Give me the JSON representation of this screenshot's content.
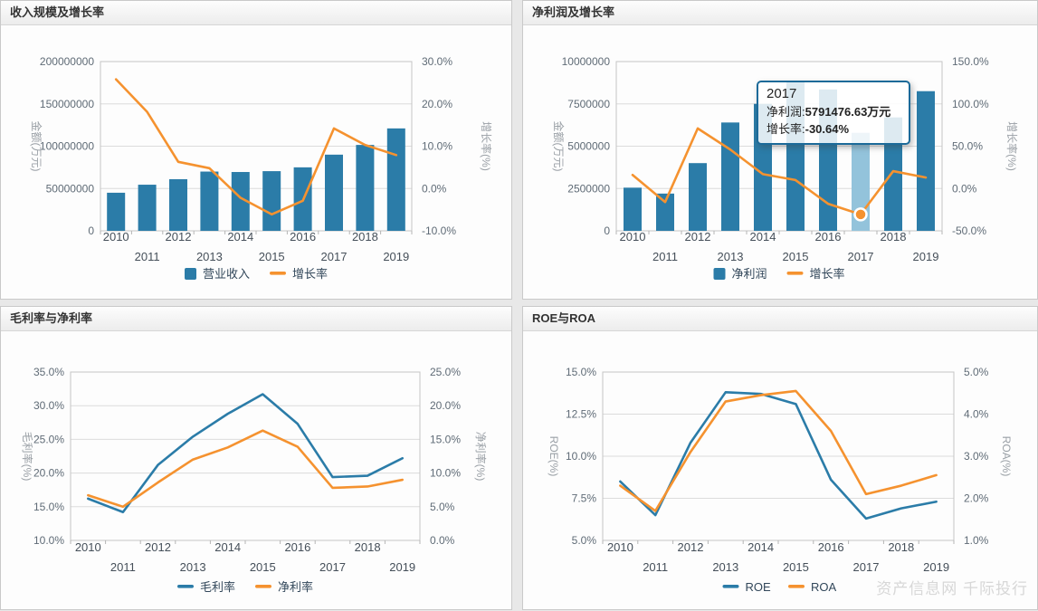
{
  "page": {
    "watermark": "资产信息网 千际投行"
  },
  "panels": [
    {
      "title": "收入规模及增长率"
    },
    {
      "title": "净利润及增长率"
    },
    {
      "title": "毛利率与净利率"
    },
    {
      "title": "ROE与ROA"
    }
  ],
  "tooltip": {
    "year": "2017",
    "line1_label": "净利润:",
    "line1_value": "5791476.63万元",
    "line2_label": "增长率:",
    "line2_value": "-30.64%"
  },
  "colors": {
    "bar_blue": "#2b7ca8",
    "highlight_bar": "#93c3db",
    "line_orange": "#f5922f",
    "line_blue": "#2b7ca8",
    "tooltip_border": "#1c6a99",
    "grid": "#dcdcdc",
    "plot_border": "#c5c5c5"
  },
  "chart_data": [
    {
      "type": "bar",
      "title": "收入规模及增长率",
      "categories": [
        "2010",
        "2011",
        "2012",
        "2013",
        "2014",
        "2015",
        "2016",
        "2017",
        "2018",
        "2019"
      ],
      "series": [
        {
          "name": "营业收入",
          "type": "bar",
          "axis": "left",
          "color": "#2b7ca8",
          "values": [
            45000000,
            54500000,
            61000000,
            70000000,
            69500000,
            70500000,
            75000000,
            90000000,
            101500000,
            121000000
          ]
        },
        {
          "name": "增长率",
          "type": "line",
          "axis": "right",
          "color": "#f5922f",
          "values": [
            25.8,
            18.1,
            6.3,
            4.8,
            -2.2,
            -6.1,
            -2.9,
            14.2,
            10.3,
            7.9
          ]
        }
      ],
      "left_axis": {
        "label": "金额(万元)",
        "min": 0,
        "max": 200000000,
        "tick_labels": [
          "0",
          "50000000",
          "100000000",
          "150000000",
          "200000000"
        ]
      },
      "right_axis": {
        "label": "增长率(%)",
        "min": -10,
        "max": 30,
        "tick_labels": [
          "-10.0%",
          "0.0%",
          "10.0%",
          "20.0%",
          "30.0%"
        ]
      },
      "legend_position": "bottom",
      "grid": true
    },
    {
      "type": "bar",
      "title": "净利润及增长率",
      "categories": [
        "2010",
        "2011",
        "2012",
        "2013",
        "2014",
        "2015",
        "2016",
        "2017",
        "2018",
        "2019"
      ],
      "series": [
        {
          "name": "净利润",
          "type": "bar",
          "axis": "left",
          "color": "#2b7ca8",
          "values": [
            2550000,
            2200000,
            4000000,
            6400000,
            7500000,
            8800000,
            8350000,
            5791476.63,
            6700000,
            8250000
          ]
        },
        {
          "name": "增长率",
          "type": "line",
          "axis": "right",
          "color": "#f5922f",
          "values": [
            16,
            -16,
            71,
            46,
            17,
            10,
            -18,
            -30.64,
            20.5,
            13
          ]
        }
      ],
      "left_axis": {
        "label": "金额(万元)",
        "min": 0,
        "max": 10000000,
        "tick_labels": [
          "0",
          "2500000",
          "5000000",
          "7500000",
          "10000000"
        ]
      },
      "right_axis": {
        "label": "增长率(%)",
        "min": -50,
        "max": 150,
        "tick_labels": [
          "-50.0%",
          "0.0%",
          "50.0%",
          "100.0%",
          "150.0%"
        ]
      },
      "highlight": {
        "index": 7,
        "bar_color": "#93c3db",
        "marker_on_line": true
      },
      "legend_position": "bottom",
      "grid": true
    },
    {
      "type": "line",
      "title": "毛利率与净利率",
      "categories": [
        "2010",
        "2011",
        "2012",
        "2013",
        "2014",
        "2015",
        "2016",
        "2017",
        "2018",
        "2019"
      ],
      "series": [
        {
          "name": "毛利率",
          "type": "line",
          "axis": "left",
          "color": "#2b7ca8",
          "values": [
            16.2,
            14.2,
            21.2,
            25.4,
            28.8,
            31.7,
            27.3,
            19.4,
            19.6,
            22.2
          ]
        },
        {
          "name": "净利率",
          "type": "line",
          "axis": "right",
          "color": "#f5922f",
          "values": [
            6.7,
            5.0,
            8.6,
            12.0,
            13.8,
            16.3,
            13.9,
            7.8,
            8.0,
            9.0
          ]
        }
      ],
      "left_axis": {
        "label": "毛利率(%)",
        "min": 10,
        "max": 35,
        "tick_labels": [
          "10.0%",
          "15.0%",
          "20.0%",
          "25.0%",
          "30.0%",
          "35.0%"
        ]
      },
      "right_axis": {
        "label": "净利率(%)",
        "min": 0,
        "max": 25,
        "tick_labels": [
          "0.0%",
          "5.0%",
          "10.0%",
          "15.0%",
          "20.0%",
          "25.0%"
        ]
      },
      "legend_position": "bottom",
      "grid": true
    },
    {
      "type": "line",
      "title": "ROE与ROA",
      "categories": [
        "2010",
        "2011",
        "2012",
        "2013",
        "2014",
        "2015",
        "2016",
        "2017",
        "2018",
        "2019"
      ],
      "series": [
        {
          "name": "ROE",
          "type": "line",
          "axis": "left",
          "color": "#2b7ca8",
          "values": [
            8.5,
            6.5,
            10.8,
            13.8,
            13.7,
            13.1,
            8.6,
            6.3,
            6.9,
            7.3
          ]
        },
        {
          "name": "ROA",
          "type": "line",
          "axis": "right",
          "color": "#f5922f",
          "values": [
            2.3,
            1.7,
            3.1,
            4.3,
            4.45,
            4.55,
            3.6,
            2.1,
            2.3,
            2.55
          ]
        }
      ],
      "left_axis": {
        "label": "ROE(%)",
        "min": 5,
        "max": 15,
        "tick_labels": [
          "5.0%",
          "7.5%",
          "10.0%",
          "12.5%",
          "15.0%"
        ]
      },
      "right_axis": {
        "label": "ROA(%)",
        "min": 1,
        "max": 5,
        "tick_labels": [
          "1.0%",
          "2.0%",
          "3.0%",
          "4.0%",
          "5.0%"
        ]
      },
      "legend_position": "bottom",
      "grid": true
    }
  ]
}
